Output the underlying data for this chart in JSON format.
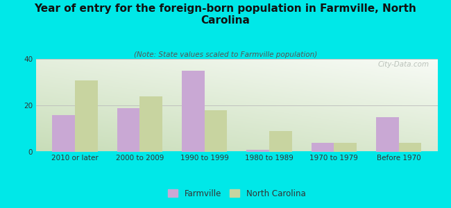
{
  "categories": [
    "2010 or later",
    "2000 to 2009",
    "1990 to 1999",
    "1980 to 1989",
    "1970 to 1979",
    "Before 1970"
  ],
  "farmville_values": [
    16,
    19,
    35,
    1,
    4,
    15
  ],
  "nc_values": [
    31,
    24,
    18,
    9,
    4,
    4
  ],
  "farmville_color": "#c9a8d4",
  "nc_color": "#c8d4a0",
  "title": "Year of entry for the foreign-born population in Farmville, North\nCarolina",
  "subtitle": "(Note: State values scaled to Farmville population)",
  "background_color": "#00e8e8",
  "plot_bg_topleft": "#d6ecd2",
  "plot_bg_bottomright": "#f0f5ee",
  "plot_bg_white": "#ffffff",
  "ylim": [
    0,
    40
  ],
  "yticks": [
    0,
    20,
    40
  ],
  "legend_farmville": "Farmville",
  "legend_nc": "North Carolina",
  "watermark": "City-Data.com",
  "title_fontsize": 11,
  "subtitle_fontsize": 7.5,
  "tick_fontsize": 7.5
}
